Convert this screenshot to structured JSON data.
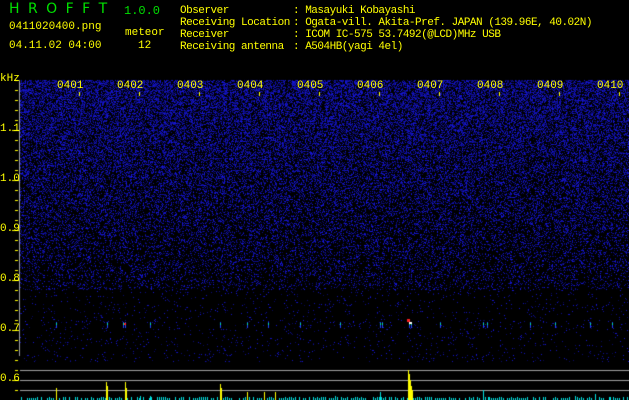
{
  "app": {
    "name": "H R O F F T",
    "version": "1.0.0"
  },
  "file": {
    "name": "0411020400.png",
    "datetime": "04.11.02 04:00"
  },
  "meteor": {
    "label": "meteor",
    "count": "12"
  },
  "info": [
    {
      "label": "Observer",
      "value": ": Masayuki Kobayashi"
    },
    {
      "label": "Receiving Location",
      "value": ": Ogata-vill. Akita-Pref. JAPAN (139.96E, 40.02N)"
    },
    {
      "label": "Receiver",
      "value": ": ICOM IC-575 53.7492(@LCD)MHz USB"
    },
    {
      "label": "Receiving antenna",
      "value": ": A504HB(yagi 4el)"
    }
  ],
  "axis": {
    "y_unit": "kHz",
    "y_ticks": [
      "1.1",
      "1.0",
      "0.9",
      "0.8",
      "0.7",
      "0.6"
    ],
    "x_ticks": [
      "0401",
      "0402",
      "0403",
      "0404",
      "0405",
      "0406",
      "0407",
      "0408",
      "0409",
      "0410"
    ]
  },
  "colors": {
    "text": "#ffff00",
    "title": "#00e000",
    "noise": "#1010c0",
    "axis": "#a0a0a0",
    "bar_main": "#ffff00",
    "bar_minor": "#00e0e0"
  }
}
